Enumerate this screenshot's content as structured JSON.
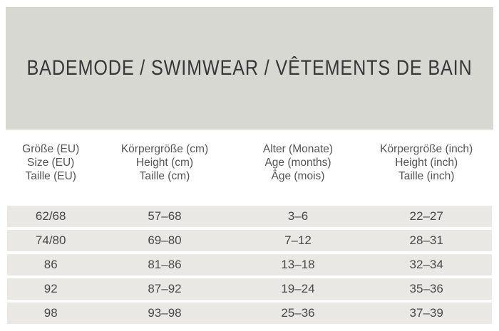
{
  "banner": {
    "title": "BADEMODE / SWIMWEAR / VÊTEMENTS DE BAIN"
  },
  "table": {
    "columns": [
      {
        "lines": [
          "Größe (EU)",
          "Size (EU)",
          "Taille (EU)"
        ]
      },
      {
        "lines": [
          "Körpergröße (cm)",
          "Height (cm)",
          "Taille (cm)"
        ]
      },
      {
        "lines": [
          "Alter (Monate)",
          "Age (months)",
          "Âge (mois)"
        ]
      },
      {
        "lines": [
          "Körpergröße (inch)",
          "Height (inch)",
          "Taille (inch)"
        ]
      }
    ],
    "rows": [
      [
        "62/68",
        "57–68",
        "3–6",
        "22–27"
      ],
      [
        "74/80",
        "69–80",
        "7–12",
        "28–31"
      ],
      [
        "86",
        "81–86",
        "13–18",
        "32–34"
      ],
      [
        "92",
        "87–92",
        "19–24",
        "35–36"
      ],
      [
        "98",
        "93–98",
        "25–36",
        "37–39"
      ]
    ]
  },
  "colors": {
    "banner_background": "#d8d8d3",
    "row_background": "#e9e8e4",
    "title_text": "#373737",
    "header_text": "#545454",
    "cell_text": "#494949",
    "page_background": "#ffffff"
  }
}
